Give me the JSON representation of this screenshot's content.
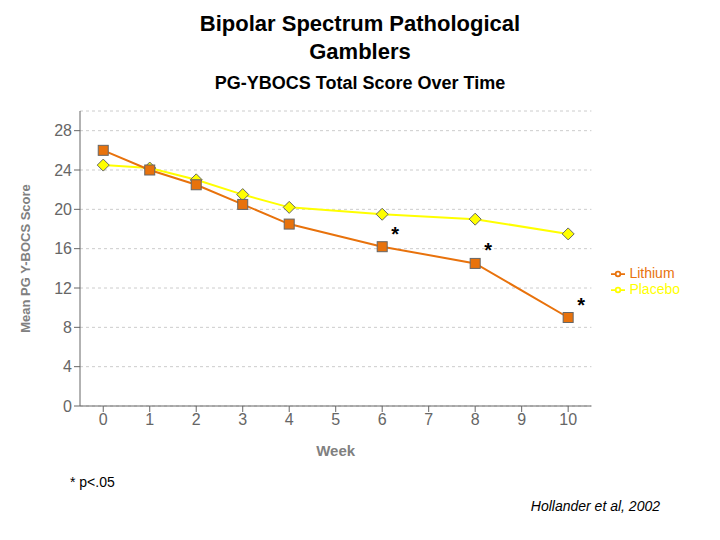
{
  "chart_data": {
    "type": "line",
    "title": [
      "Bipolar Spectrum Pathological",
      "Gamblers"
    ],
    "subtitle": "PG-YBOCS Total Score Over Time",
    "x_label": "Week",
    "y_label": "Mean PG Y-BOCS Score",
    "x": [
      0,
      1,
      2,
      3,
      4,
      6,
      8,
      10
    ],
    "series": [
      {
        "name": "Placebo",
        "color": "#FFFF00",
        "marker": "diamond",
        "values": [
          24.5,
          24.2,
          23.0,
          21.5,
          20.2,
          19.5,
          19.0,
          17.5
        ]
      },
      {
        "name": "Lithium",
        "color": "#E8720C",
        "marker": "square",
        "values": [
          26.0,
          24.0,
          22.5,
          20.5,
          18.5,
          16.2,
          14.5,
          9.0
        ]
      }
    ],
    "xlim": [
      -0.5,
      10.5
    ],
    "xticks": [
      0,
      1,
      2,
      3,
      4,
      5,
      6,
      7,
      8,
      9,
      10
    ],
    "ylim": [
      0,
      30
    ],
    "yticks": [
      0,
      4,
      8,
      12,
      16,
      20,
      24,
      28
    ],
    "grid": true,
    "legend": "right",
    "annotations": [
      {
        "text": "*",
        "x": 6,
        "y": 16.2
      },
      {
        "text": "*",
        "x": 8,
        "y": 14.5
      },
      {
        "text": "*",
        "x": 10,
        "y": 9.0
      },
      {
        "text": "* p<.05"
      },
      {
        "text": "Hollander et al, 2002"
      }
    ]
  }
}
